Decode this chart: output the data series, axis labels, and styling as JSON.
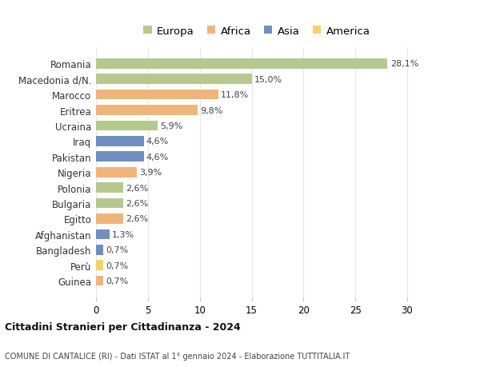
{
  "countries": [
    "Romania",
    "Macedonia d/N.",
    "Marocco",
    "Eritrea",
    "Ucraina",
    "Iraq",
    "Pakistan",
    "Nigeria",
    "Polonia",
    "Bulgaria",
    "Egitto",
    "Afghanistan",
    "Bangladesh",
    "Perù",
    "Guinea"
  ],
  "values": [
    28.1,
    15.0,
    11.8,
    9.8,
    5.9,
    4.6,
    4.6,
    3.9,
    2.6,
    2.6,
    2.6,
    1.3,
    0.7,
    0.7,
    0.7
  ],
  "labels": [
    "28,1%",
    "15,0%",
    "11,8%",
    "9,8%",
    "5,9%",
    "4,6%",
    "4,6%",
    "3,9%",
    "2,6%",
    "2,6%",
    "2,6%",
    "1,3%",
    "0,7%",
    "0,7%",
    "0,7%"
  ],
  "continents": [
    "Europa",
    "Europa",
    "Africa",
    "Africa",
    "Europa",
    "Asia",
    "Asia",
    "Africa",
    "Europa",
    "Europa",
    "Africa",
    "Asia",
    "Asia",
    "America",
    "Africa"
  ],
  "colors": {
    "Europa": "#b5c98e",
    "Africa": "#f0b47a",
    "Asia": "#6e8fc0",
    "America": "#f5d06e"
  },
  "legend_order": [
    "Europa",
    "Africa",
    "Asia",
    "America"
  ],
  "title1": "Cittadini Stranieri per Cittadinanza - 2024",
  "title2": "COMUNE DI CANTALICE (RI) - Dati ISTAT al 1° gennaio 2024 - Elaborazione TUTTITALIA.IT",
  "xlim": [
    0,
    31
  ],
  "xticks": [
    0,
    5,
    10,
    15,
    20,
    25,
    30
  ],
  "bg_color": "#ffffff",
  "grid_color": "#e8e8e8",
  "bar_height": 0.65,
  "label_fontsize": 8,
  "ytick_fontsize": 8.5,
  "xtick_fontsize": 8.5
}
